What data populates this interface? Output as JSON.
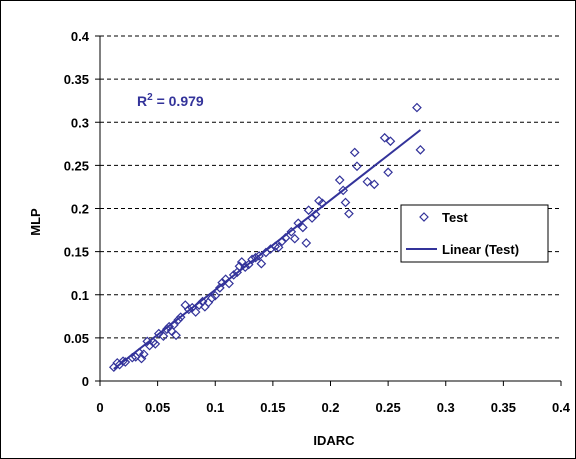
{
  "chart_data": {
    "type": "scatter",
    "xlabel": "IDARC",
    "ylabel": "MLP",
    "xlim": [
      0,
      0.4
    ],
    "ylim": [
      0,
      0.4
    ],
    "x_ticks": [
      "0",
      "0.05",
      "0.1",
      "0.15",
      "0.2",
      "0.25",
      "0.3",
      "0.35",
      "0.4"
    ],
    "y_ticks": [
      "0",
      "0.05",
      "0.1",
      "0.15",
      "0.2",
      "0.25",
      "0.3",
      "0.35",
      "0.4"
    ],
    "grid": "horizontal-dashed",
    "legend_position": "right",
    "annotation": {
      "prefix": "R",
      "superscript": "2",
      "suffix": " = 0.979"
    },
    "colors": {
      "series": "#33339a",
      "grid": "#000000"
    },
    "series": [
      {
        "name": "Test",
        "marker": "diamond-open",
        "points": [
          [
            0.012,
            0.016
          ],
          [
            0.015,
            0.021
          ],
          [
            0.017,
            0.019
          ],
          [
            0.02,
            0.023
          ],
          [
            0.022,
            0.022
          ],
          [
            0.028,
            0.027
          ],
          [
            0.031,
            0.028
          ],
          [
            0.034,
            0.033
          ],
          [
            0.036,
            0.026
          ],
          [
            0.038,
            0.031
          ],
          [
            0.041,
            0.046
          ],
          [
            0.043,
            0.041
          ],
          [
            0.046,
            0.045
          ],
          [
            0.048,
            0.043
          ],
          [
            0.051,
            0.055
          ],
          [
            0.055,
            0.052
          ],
          [
            0.058,
            0.06
          ],
          [
            0.06,
            0.063
          ],
          [
            0.062,
            0.058
          ],
          [
            0.064,
            0.065
          ],
          [
            0.066,
            0.053
          ],
          [
            0.068,
            0.071
          ],
          [
            0.07,
            0.074
          ],
          [
            0.074,
            0.088
          ],
          [
            0.077,
            0.083
          ],
          [
            0.08,
            0.085
          ],
          [
            0.083,
            0.08
          ],
          [
            0.086,
            0.088
          ],
          [
            0.089,
            0.092
          ],
          [
            0.091,
            0.086
          ],
          [
            0.094,
            0.091
          ],
          [
            0.097,
            0.096
          ],
          [
            0.1,
            0.099
          ],
          [
            0.104,
            0.108
          ],
          [
            0.106,
            0.114
          ],
          [
            0.109,
            0.118
          ],
          [
            0.112,
            0.113
          ],
          [
            0.116,
            0.123
          ],
          [
            0.119,
            0.126
          ],
          [
            0.121,
            0.133
          ],
          [
            0.123,
            0.138
          ],
          [
            0.126,
            0.132
          ],
          [
            0.129,
            0.135
          ],
          [
            0.132,
            0.141
          ],
          [
            0.135,
            0.143
          ],
          [
            0.138,
            0.145
          ],
          [
            0.14,
            0.136
          ],
          [
            0.144,
            0.149
          ],
          [
            0.148,
            0.153
          ],
          [
            0.152,
            0.156
          ],
          [
            0.155,
            0.155
          ],
          [
            0.158,
            0.162
          ],
          [
            0.161,
            0.166
          ],
          [
            0.166,
            0.173
          ],
          [
            0.169,
            0.165
          ],
          [
            0.172,
            0.183
          ],
          [
            0.176,
            0.178
          ],
          [
            0.179,
            0.16
          ],
          [
            0.181,
            0.198
          ],
          [
            0.184,
            0.189
          ],
          [
            0.187,
            0.193
          ],
          [
            0.19,
            0.209
          ],
          [
            0.193,
            0.206
          ],
          [
            0.208,
            0.233
          ],
          [
            0.211,
            0.221
          ],
          [
            0.213,
            0.207
          ],
          [
            0.216,
            0.194
          ],
          [
            0.221,
            0.265
          ],
          [
            0.223,
            0.249
          ],
          [
            0.232,
            0.231
          ],
          [
            0.238,
            0.228
          ],
          [
            0.247,
            0.282
          ],
          [
            0.25,
            0.242
          ],
          [
            0.252,
            0.278
          ],
          [
            0.275,
            0.317
          ],
          [
            0.278,
            0.268
          ]
        ]
      },
      {
        "name": "Linear (Test)",
        "kind": "trendline",
        "points": [
          [
            0.012,
            0.014
          ],
          [
            0.278,
            0.291
          ]
        ]
      }
    ]
  }
}
